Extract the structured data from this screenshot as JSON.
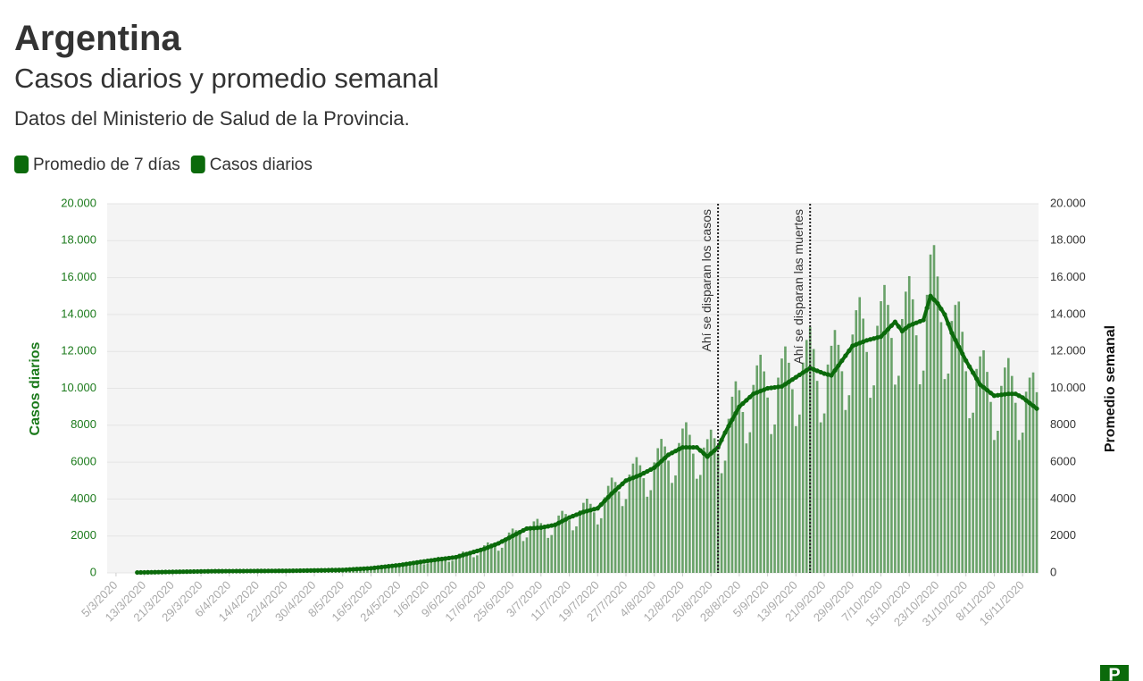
{
  "chart_data": {
    "type": "bar",
    "title": "Argentina",
    "subtitle": "Casos diarios y promedio semanal",
    "description": "Datos del Ministerio de Salud de la Provincia.",
    "y_label": "Casos diarios",
    "y2_label": "Promedio semanal",
    "logo": "P",
    "grid": true,
    "legend_position": "top-left",
    "ylim": [
      0,
      20000
    ],
    "yticks": [
      0,
      2000,
      4000,
      6000,
      8000,
      {
        "value": 10000,
        "label": "10.000"
      },
      {
        "value": 12000,
        "label": "12.000"
      },
      {
        "value": 14000,
        "label": "14.000"
      },
      {
        "value": 16000,
        "label": "16.000"
      },
      {
        "value": 18000,
        "label": "18.000"
      },
      {
        "value": 20000,
        "label": "20.000"
      }
    ],
    "y2lim": [
      0,
      20000
    ],
    "y2ticks": [
      0,
      2000,
      4000,
      6000,
      8000,
      {
        "value": 10000,
        "label": "10.000"
      },
      {
        "value": 12000,
        "label": "12.000"
      },
      {
        "value": 14000,
        "label": "14.000"
      },
      {
        "value": 16000,
        "label": "16.000"
      },
      {
        "value": 18000,
        "label": "18.000"
      },
      {
        "value": 20000,
        "label": "20.000"
      }
    ],
    "annotations": [
      {
        "text": "Ahí se disparan los casos",
        "date": "22/8/2020"
      },
      {
        "text": "Ahí se disparan las muertes",
        "date": "17/9/2020"
      }
    ],
    "categories": [
      null,
      null,
      "5/3/2020",
      null,
      null,
      null,
      null,
      null,
      null,
      null,
      "13/3/2020",
      null,
      null,
      null,
      null,
      null,
      null,
      null,
      "21/3/2020",
      null,
      null,
      null,
      null,
      null,
      null,
      null,
      "29/3/2020",
      null,
      null,
      null,
      null,
      null,
      null,
      null,
      "6/4/2020",
      null,
      null,
      null,
      null,
      null,
      null,
      null,
      "14/4/2020",
      null,
      null,
      null,
      null,
      null,
      null,
      null,
      "22/4/2020",
      null,
      null,
      null,
      null,
      null,
      null,
      null,
      "30/4/2020",
      null,
      null,
      null,
      null,
      null,
      null,
      null,
      "8/5/2020",
      null,
      null,
      null,
      null,
      null,
      null,
      null,
      "16/5/2020",
      null,
      null,
      null,
      null,
      null,
      null,
      null,
      "24/5/2020",
      null,
      null,
      null,
      null,
      null,
      null,
      null,
      "1/6/2020",
      null,
      null,
      null,
      null,
      null,
      null,
      null,
      "9/6/2020",
      null,
      null,
      null,
      null,
      null,
      null,
      null,
      "17/6/2020",
      null,
      null,
      null,
      null,
      null,
      null,
      null,
      "25/6/2020",
      null,
      null,
      null,
      null,
      null,
      null,
      null,
      "3/7/2020",
      null,
      null,
      null,
      null,
      null,
      null,
      null,
      "11/7/2020",
      null,
      null,
      null,
      null,
      null,
      null,
      null,
      "19/7/2020",
      null,
      null,
      null,
      null,
      null,
      null,
      null,
      "27/7/2020",
      null,
      null,
      null,
      null,
      null,
      null,
      null,
      "4/8/2020",
      null,
      null,
      null,
      null,
      null,
      null,
      null,
      "12/8/2020",
      null,
      null,
      null,
      null,
      null,
      null,
      null,
      "20/8/2020",
      null,
      null,
      null,
      null,
      null,
      null,
      null,
      "28/8/2020",
      null,
      null,
      null,
      null,
      null,
      null,
      null,
      "5/9/2020",
      null,
      null,
      null,
      null,
      null,
      null,
      null,
      "13/9/2020",
      null,
      null,
      null,
      null,
      null,
      null,
      null,
      "21/9/2020",
      null,
      null,
      null,
      null,
      null,
      null,
      null,
      "29/9/2020",
      null,
      null,
      null,
      null,
      null,
      null,
      null,
      "7/10/2020",
      null,
      null,
      null,
      null,
      null,
      null,
      null,
      "15/10/2020",
      null,
      null,
      null,
      null,
      null,
      null,
      null,
      "23/10/2020",
      null,
      null,
      null,
      null,
      null,
      null,
      null,
      "31/10/2020",
      null,
      null,
      null,
      null,
      null,
      null,
      null,
      "8/11/2020",
      null,
      null,
      null,
      null,
      null,
      null,
      null,
      "16/11/2020",
      null,
      null,
      null,
      null
    ],
    "series": [
      {
        "name": "Promedio de 7 días",
        "type": "line",
        "axis": "y2",
        "color": "#0b6a0b",
        "values": [
          null,
          null,
          null,
          null,
          null,
          null,
          null,
          null,
          20,
          23,
          27,
          30,
          33,
          37,
          40,
          43,
          47,
          50,
          53,
          57,
          60,
          63,
          66,
          69,
          72,
          75,
          78,
          81,
          84,
          87,
          90,
          91,
          92,
          93,
          94,
          95,
          96,
          97,
          98,
          99,
          100,
          101,
          102,
          103,
          104,
          105,
          106,
          107,
          108,
          109,
          110,
          113,
          116,
          119,
          122,
          125,
          128,
          131,
          134,
          137,
          140,
          143,
          147,
          150,
          153,
          157,
          160,
          171,
          183,
          194,
          205,
          216,
          228,
          239,
          250,
          271,
          293,
          314,
          335,
          356,
          378,
          399,
          420,
          449,
          478,
          506,
          535,
          564,
          593,
          621,
          650,
          675,
          700,
          725,
          750,
          775,
          800,
          825,
          850,
          906,
          963,
          1019,
          1075,
          1131,
          1188,
          1244,
          1300,
          1375,
          1450,
          1525,
          1600,
          1700,
          1800,
          1900,
          2000,
          2100,
          2200,
          2300,
          2400,
          2413,
          2425,
          2438,
          2450,
          2488,
          2525,
          2563,
          2600,
          2700,
          2800,
          2900,
          3000,
          3075,
          3150,
          3225,
          3300,
          3350,
          3400,
          3450,
          3500,
          3700,
          3900,
          4100,
          4300,
          4475,
          4650,
          4825,
          5000,
          5075,
          5150,
          5225,
          5300,
          5400,
          5500,
          5600,
          5700,
          5875,
          6050,
          6225,
          6400,
          6500,
          6600,
          6700,
          6800,
          6800,
          6800,
          6800,
          6800,
          6633,
          6467,
          6300,
          6467,
          6633,
          6800,
          7200,
          7600,
          7950,
          8300,
          8650,
          9000,
          9175,
          9350,
          9525,
          9700,
          9775,
          9850,
          9925,
          10000,
          10025,
          10050,
          10075,
          10100,
          10225,
          10350,
          10475,
          10600,
          10725,
          10850,
          10975,
          11100,
          11025,
          10950,
          10875,
          10800,
          10750,
          10700,
          10967,
          11233,
          11500,
          11767,
          12033,
          12300,
          12375,
          12450,
          12525,
          12600,
          12650,
          12700,
          12750,
          12800,
          13000,
          13200,
          13400,
          13600,
          13350,
          13100,
          13250,
          13400,
          13475,
          13550,
          13625,
          13700,
          14350,
          15000,
          14800,
          14600,
          14300,
          14000,
          13500,
          13000,
          12625,
          12250,
          11875,
          11500,
          11175,
          10850,
          10525,
          10200,
          10050,
          9900,
          9750,
          9600,
          9625,
          9650,
          9675,
          9700,
          9700,
          9700,
          9600,
          9500,
          9350,
          9200,
          9050,
          8900
        ]
      },
      {
        "name": "Casos diarios",
        "type": "bar",
        "color": "#0b6a0b",
        "values": [
          null,
          null,
          null,
          null,
          null,
          null,
          null,
          null,
          23,
          28,
          30,
          29,
          25,
          30,
          42,
          49,
          56,
          55,
          50,
          43,
          48,
          66,
          76,
          83,
          79,
          71,
          59,
          65,
          88,
          100,
          108,
          100,
          87,
          70,
          75,
          100,
          110,
          116,
          109,
          94,
          75,
          81,
          107,
          118,
          125,
          116,
          101,
          80,
          86,
          114,
          127,
          136,
          127,
          113,
          92,
          100,
          135,
          151,
          161,
          151,
          133,
          107,
          118,
          158,
          176,
          188,
          176,
          162,
          137,
          155,
          215,
          248,
          274,
          263,
          238,
          203,
          234,
          330,
          385,
          427,
          416,
          379,
          315,
          359,
          502,
          582,
          642,
          620,
          563,
          466,
          520,
          709,
          805,
          870,
          825,
          736,
          600,
          660,
          893,
          1042,
          1156,
          1121,
          1021,
          848,
          950,
          1306,
          1495,
          1650,
          1595,
          1449,
          1200,
          1360,
          1890,
          2185,
          2400,
          2310,
          2090,
          1725,
          1920,
          2534,
          2789,
          2926,
          2695,
          2364,
          1894,
          2050,
          2730,
          3105,
          3360,
          3190,
          2850,
          2306,
          2520,
          3386,
          3795,
          4020,
          3740,
          3278,
          2625,
          2960,
          4095,
          4715,
          5160,
          4923,
          4418,
          3619,
          4000,
          5329,
          5923,
          6270,
          5830,
          5130,
          4125,
          4480,
          5985,
          6756,
          7260,
          6848,
          6080,
          4875,
          5280,
          7035,
          7820,
          8160,
          7480,
          6460,
          5100,
          5306,
          6790,
          7245,
          7760,
          7296,
          6460,
          5400,
          6080,
          8348,
          9545,
          10380,
          9900,
          8716,
          7013,
          7620,
          10185,
          11241,
          11820,
          10918,
          9500,
          7519,
          8040,
          10579,
          11615,
          12270,
          11385,
          9951,
          7950,
          8580,
          11393,
          12621,
          13320,
          12128,
          10403,
          8156,
          8640,
          11288,
          12305,
          13160,
          12356,
          10925,
          8825,
          9626,
          12915,
          14231,
          14940,
          13778,
          11970,
          9488,
          10160,
          13388,
          14720,
          15600,
          14520,
          12730,
          10200,
          10680,
          13755,
          15238,
          16080,
          14823,
          12873,
          10219,
          10960,
          15068,
          17250,
          17760,
          16060,
          13585,
          10500,
          10800,
          13650,
          14519,
          14700,
          13063,
          10925,
          8381,
          8680,
          11051,
          11730,
          12060,
          10890,
          9263,
          7200,
          7700,
          10133,
          11126,
          11640,
          10670,
          9215,
          7200,
          7600,
          9818,
          10580,
          10860,
          9790
        ]
      }
    ]
  }
}
